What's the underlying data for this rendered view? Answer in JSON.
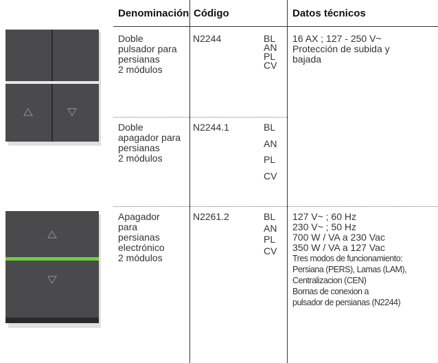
{
  "table": {
    "headers": [
      "Denominación",
      "Código",
      "Datos técnicos"
    ],
    "rows": [
      {
        "name": [
          "Doble",
          "pulsador para",
          "persianas",
          "2 módulos"
        ],
        "code": "N2244",
        "variants": [
          "BL",
          "AN",
          "PL",
          "CV"
        ],
        "specs": [
          "16 AX ; 127 - 250 V~",
          "Protección de subida y",
          "bajada"
        ],
        "small_specs": []
      },
      {
        "name": [
          "Doble",
          "apagador para",
          "persianas",
          "2 módulos"
        ],
        "code": "N2244.1",
        "variants": [
          "BL",
          "AN",
          "PL",
          "CV"
        ],
        "specs": [],
        "small_specs": []
      },
      {
        "name": [
          "Apagador",
          "para",
          "persianas",
          "electrónico",
          "2 módulos"
        ],
        "code": "N2261.2",
        "variants": [
          "BL",
          "AN",
          "PL",
          "CV"
        ],
        "specs": [
          "127 V~ ; 60 Hz",
          "230 V~ ; 50 Hz",
          "700 W / VA a 230 Vac",
          "350 W / VA a 127 Vac"
        ],
        "small_specs": [
          "Tres modos de funcionamiento:",
          "Persiana (PERS), Lamas (LAM),",
          "Centralizacion (CEN)",
          "Bornas de conexion a",
          "pulsador de persianas (N2244)"
        ]
      }
    ]
  }
}
